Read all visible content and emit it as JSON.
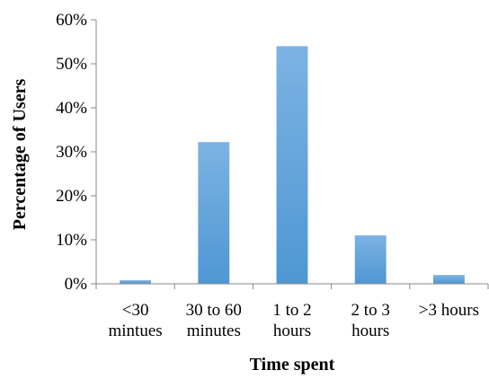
{
  "chart_data": {
    "type": "bar",
    "categories": [
      [
        "<30",
        "mintues"
      ],
      [
        "30 to 60",
        "minutes"
      ],
      [
        "1 to 2",
        "hours"
      ],
      [
        "2 to 3",
        "hours"
      ],
      [
        ">3 hours"
      ]
    ],
    "values": [
      0.8,
      32.2,
      54.0,
      11.0,
      2.0
    ],
    "xlabel": "Time spent",
    "ylabel": "Percentage of Users",
    "ylim": [
      0,
      60
    ],
    "yticks": [
      "0%",
      "10%",
      "20%",
      "30%",
      "40%",
      "50%",
      "60%"
    ],
    "grid": false,
    "legend": "none",
    "colors": {
      "bar": "#4f97d3",
      "bar_light": "#7cb3e3",
      "axis": "#888888"
    }
  }
}
